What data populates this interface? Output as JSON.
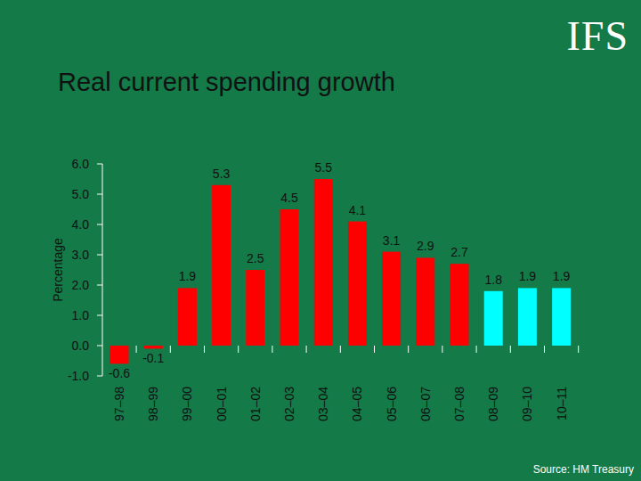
{
  "chart_data": {
    "type": "bar",
    "title": "Real current spending growth",
    "ylabel": "Percentage",
    "source": "Source: HM Treasury",
    "logo": "IFS",
    "categories": [
      "97–98",
      "98–99",
      "99–00",
      "00–01",
      "01–02",
      "02–03",
      "03–04",
      "04–05",
      "05–06",
      "06–07",
      "07–08",
      "08–09",
      "09–10",
      "10–11"
    ],
    "values": [
      -0.6,
      -0.1,
      1.9,
      5.3,
      2.5,
      4.5,
      5.5,
      4.1,
      3.1,
      2.9,
      2.7,
      1.8,
      1.9,
      1.9
    ],
    "colors": [
      "#ff0000",
      "#ff0000",
      "#ff0000",
      "#ff0000",
      "#ff0000",
      "#ff0000",
      "#ff0000",
      "#ff0000",
      "#ff0000",
      "#ff0000",
      "#ff0000",
      "#00ffff",
      "#00ffff",
      "#00ffff"
    ],
    "ylim": [
      -1,
      6
    ],
    "yticks": [
      {
        "value": -1,
        "label": "-1.0"
      },
      {
        "value": 0,
        "label": "0.0"
      },
      {
        "value": 1,
        "label": "1.0"
      },
      {
        "value": 2,
        "label": "2.0"
      },
      {
        "value": 3,
        "label": "3.0"
      },
      {
        "value": 4,
        "label": "4.0"
      },
      {
        "value": 5,
        "label": "5.0"
      },
      {
        "value": 6,
        "label": "6.0"
      }
    ],
    "grid": false,
    "data_labels": true
  }
}
